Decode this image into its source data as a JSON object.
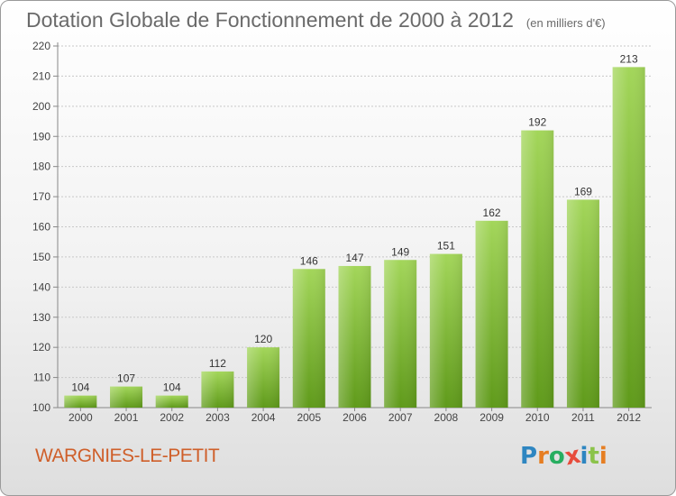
{
  "header": {
    "title": "Dotation Globale de Fonctionnement de 2000 à 2012",
    "subtitle": "(en milliers d'€)"
  },
  "footer": {
    "commune": "WARGNIES-LE-PETIT",
    "logo": {
      "letters": [
        "P",
        "r",
        "o",
        "x",
        "i",
        "t",
        "i"
      ],
      "colors": [
        "#2e86c1",
        "#e67e22",
        "#27ae60",
        "#e74c3c",
        "#2e86c1",
        "#8bc34a",
        "#e67e22"
      ]
    }
  },
  "chart_data": {
    "type": "bar",
    "categories": [
      "2000",
      "2001",
      "2002",
      "2003",
      "2004",
      "2005",
      "2006",
      "2007",
      "2008",
      "2009",
      "2010",
      "2011",
      "2012"
    ],
    "values": [
      104,
      107,
      104,
      112,
      120,
      146,
      147,
      149,
      151,
      162,
      192,
      169,
      213
    ],
    "ylim": [
      100,
      220
    ],
    "yticks": [
      100,
      110,
      120,
      130,
      140,
      150,
      160,
      170,
      180,
      190,
      200,
      210,
      220
    ],
    "grid": true,
    "bar_color_top": "#a3d65a",
    "bar_color_bottom": "#5f9a1a"
  }
}
